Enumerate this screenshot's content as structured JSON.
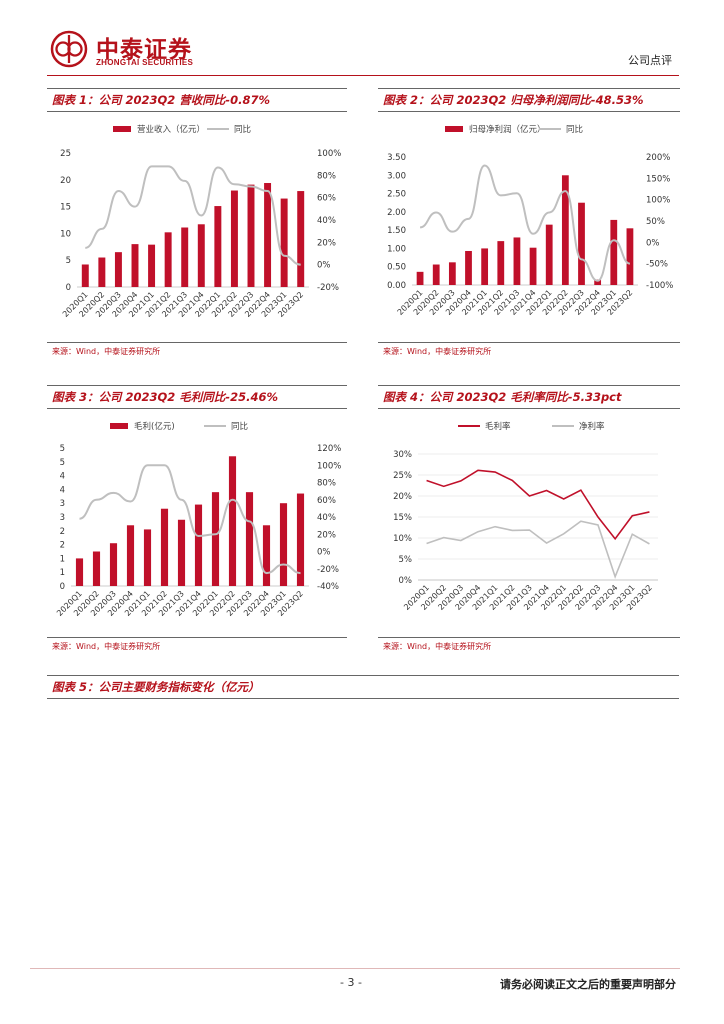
{
  "header": {
    "logo_cn": "中泰证券",
    "logo_en": "ZHONGTAI SECURITIES",
    "doc_type": "公司点评"
  },
  "figures": [
    {
      "title": "图表 1：公司 2023Q2 营收同比-0.87%",
      "source": "来源：Wind，中泰证券研究所"
    },
    {
      "title": "图表 2：公司 2023Q2 归母净利润同比-48.53%",
      "source": "来源：Wind，中泰证券研究所"
    },
    {
      "title": "图表 3：公司 2023Q2 毛利同比-25.46%",
      "source": "来源：Wind，中泰证券研究所"
    },
    {
      "title": "图表 4：公司 2023Q2 毛利率同比-5.33pct",
      "source": "来源：Wind，中泰证券研究所"
    },
    {
      "title": "图表 5：公司主要财务指标变化（亿元）"
    }
  ],
  "footer": {
    "page": "- 3 -",
    "disclaimer": "请务必阅读正文之后的重要声明部分"
  },
  "colors": {
    "brand": "#b5121b",
    "bar": "#c0102a",
    "line": "#bfbfbf"
  },
  "chart_data": [
    {
      "type": "bar",
      "categories": [
        "2020Q1",
        "2020Q2",
        "2020Q3",
        "2020Q4",
        "2021Q1",
        "2021Q2",
        "2021Q3",
        "2021Q4",
        "2022Q1",
        "2022Q2",
        "2022Q3",
        "2022Q4",
        "2023Q1",
        "2023Q2"
      ],
      "series": [
        {
          "name": "营业收入（亿元）",
          "type": "bar",
          "axis": "left",
          "values": [
            4.2,
            5.5,
            6.5,
            8.0,
            7.9,
            10.2,
            11.1,
            11.7,
            15.1,
            18.0,
            19.1,
            19.4,
            16.5,
            17.9
          ]
        },
        {
          "name": "同比",
          "type": "line",
          "axis": "right",
          "values": [
            15,
            32,
            66,
            52,
            88,
            88,
            75,
            44,
            87,
            72,
            70,
            66,
            8,
            0
          ]
        }
      ],
      "ylim": [
        0,
        25
      ],
      "yticks": [
        "0",
        "5",
        "10",
        "15",
        "20",
        "25"
      ],
      "y2lim": [
        -20,
        100
      ],
      "y2ticks": [
        "-20%",
        "0%",
        "20%",
        "40%",
        "60%",
        "80%",
        "100%"
      ],
      "legend": "top"
    },
    {
      "type": "bar",
      "categories": [
        "2020Q1",
        "2020Q2",
        "2020Q3",
        "2020Q4",
        "2021Q1",
        "2021Q2",
        "2021Q3",
        "2021Q4",
        "2022Q1",
        "2022Q2",
        "2022Q3",
        "2022Q4",
        "2023Q1",
        "2023Q2"
      ],
      "series": [
        {
          "name": "归母净利润（亿元）",
          "type": "bar",
          "axis": "left",
          "values": [
            0.36,
            0.56,
            0.62,
            0.93,
            1.0,
            1.2,
            1.3,
            1.02,
            1.65,
            3.0,
            2.25,
            0.15,
            1.78,
            1.55
          ]
        },
        {
          "name": "同比",
          "type": "line",
          "axis": "right",
          "values": [
            35,
            70,
            25,
            55,
            180,
            110,
            115,
            20,
            70,
            120,
            -40,
            -90,
            5,
            -50
          ]
        }
      ],
      "ylim": [
        0,
        3.5
      ],
      "yticks": [
        "0.00",
        "0.50",
        "1.00",
        "1.50",
        "2.00",
        "2.50",
        "3.00",
        "3.50"
      ],
      "y2lim": [
        -100,
        200
      ],
      "y2ticks": [
        "-100%",
        "-50%",
        "0%",
        "50%",
        "100%",
        "150%",
        "200%"
      ],
      "legend": "top"
    },
    {
      "type": "bar",
      "categories": [
        "2020Q1",
        "2020Q2",
        "2020Q3",
        "2020Q4",
        "2021Q1",
        "2021Q2",
        "2021Q3",
        "2021Q4",
        "2022Q1",
        "2022Q2",
        "2022Q3",
        "2022Q4",
        "2023Q1",
        "2023Q2"
      ],
      "series": [
        {
          "name": "毛利(亿元)",
          "type": "bar",
          "axis": "left",
          "values": [
            1.0,
            1.25,
            1.55,
            2.2,
            2.05,
            2.8,
            2.4,
            2.95,
            3.4,
            4.7,
            3.4,
            2.2,
            3.0,
            3.35
          ]
        },
        {
          "name": "同比",
          "type": "line",
          "axis": "right",
          "values": [
            38,
            60,
            68,
            58,
            100,
            100,
            60,
            18,
            20,
            60,
            35,
            -25,
            -15,
            -25
          ]
        }
      ],
      "ylim": [
        0,
        5
      ],
      "yticks": [
        "0",
        "1",
        "1",
        "2",
        "2",
        "3",
        "3",
        "4",
        "4",
        "5",
        "5"
      ],
      "y2lim": [
        -40,
        120
      ],
      "y2ticks": [
        "-40%",
        "-20%",
        "0%",
        "20%",
        "40%",
        "60%",
        "80%",
        "100%",
        "120%"
      ],
      "legend": "top"
    },
    {
      "type": "line",
      "categories": [
        "2020Q1",
        "2020Q2",
        "2020Q3",
        "2020Q4",
        "2021Q1",
        "2021Q2",
        "2021Q3",
        "2021Q4",
        "2022Q1",
        "2022Q2",
        "2022Q3",
        "2022Q4",
        "2023Q1",
        "2023Q2"
      ],
      "series": [
        {
          "name": "毛利率",
          "values": [
            23.7,
            22.3,
            23.6,
            26.1,
            25.7,
            23.7,
            20.0,
            21.3,
            19.3,
            21.4,
            15.0,
            9.8,
            15.3,
            16.2
          ]
        },
        {
          "name": "净利率",
          "values": [
            8.7,
            10.1,
            9.4,
            11.5,
            12.7,
            11.8,
            11.9,
            8.8,
            11.0,
            14.0,
            13.1,
            0.8,
            10.9,
            8.6
          ]
        }
      ],
      "ylim": [
        0,
        30
      ],
      "yticks": [
        "0%",
        "5%",
        "10%",
        "15%",
        "20%",
        "25%",
        "30%"
      ],
      "legend": "top"
    }
  ]
}
